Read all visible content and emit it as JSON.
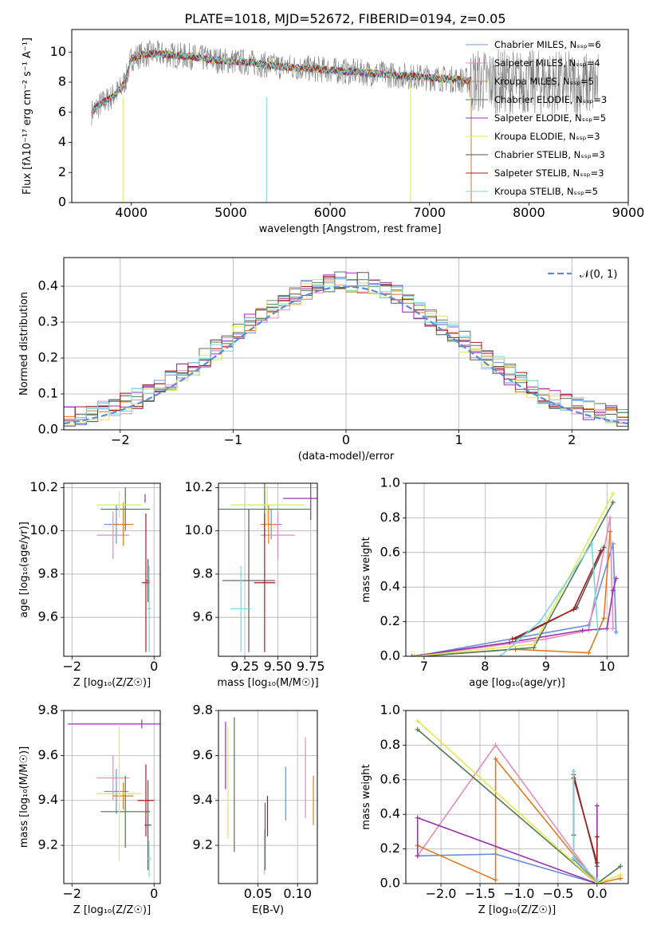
{
  "chart_data": [
    {
      "id": "spectrum",
      "type": "line",
      "title": "PLATE=1018, MJD=52672, FIBERID=0194, z=0.05",
      "xlabel": "wavelength [Angstrom, rest frame]",
      "ylabel": "Flux [fλ10⁻¹⁷ erg cm⁻² s⁻¹ A⁻¹]",
      "xlim": [
        3400,
        9000
      ],
      "ylim": [
        0,
        11.5
      ],
      "xticks": [
        "4000",
        "5000",
        "6000",
        "7000",
        "8000",
        "9000"
      ],
      "yticks": [
        "0",
        "2",
        "4",
        "6",
        "8",
        "10"
      ],
      "legend_position": "top-right",
      "legend": [
        {
          "name": "Chabrier MILES, Nₛₛₚ=6",
          "color": "#6b8fdf"
        },
        {
          "name": "Salpeter MILES, Nₛₛₚ=4",
          "color": "#e38bbf"
        },
        {
          "name": "Kroupa MILES, Nₛₛₚ=5",
          "color": "#e07a1f"
        },
        {
          "name": "Chabrier ELODIE, Nₛₛₚ=3",
          "color": "#4f7a56"
        },
        {
          "name": "Salpeter ELODIE, Nₛₛₚ=5",
          "color": "#9b30b0"
        },
        {
          "name": "Kroupa ELODIE, Nₛₛₚ=3",
          "color": "#e2ea4f"
        },
        {
          "name": "Chabrier STELIB, Nₛₛₚ=3",
          "color": "#555555"
        },
        {
          "name": "Salpeter STELIB, Nₛₛₚ=3",
          "color": "#a31c1c"
        },
        {
          "name": "Kroupa STELIB, Nₛₛₚ=5",
          "color": "#7ad7d9"
        }
      ],
      "observed_color": "#808080",
      "continuum": {
        "x": [
          3600,
          3700,
          3800,
          3900,
          3950,
          4000,
          4100,
          4200,
          4400,
          4600,
          4800,
          5000,
          5200,
          5400,
          5600,
          5800,
          6000,
          6200,
          6400,
          6600,
          6800,
          7000,
          7200,
          7400
        ],
        "y": [
          6.0,
          6.6,
          7.0,
          7.6,
          8.3,
          9.6,
          9.8,
          9.9,
          9.8,
          9.7,
          9.5,
          9.4,
          9.3,
          9.1,
          9.0,
          8.9,
          8.8,
          8.7,
          8.6,
          8.5,
          8.4,
          8.3,
          8.2,
          8.1
        ]
      },
      "observed_extent": [
        3600,
        8700
      ]
    },
    {
      "id": "residuals",
      "type": "step",
      "xlabel": "(data-model)/error",
      "ylabel": "Normed distribution",
      "xlim": [
        -2.5,
        2.5
      ],
      "ylim": [
        0,
        0.48
      ],
      "xticks": [
        "−2",
        "−1",
        "0",
        "1",
        "2"
      ],
      "yticks": [
        "0.0",
        "0.1",
        "0.2",
        "0.3",
        "0.4"
      ],
      "reference_curve": {
        "name": "𝒩(0, 1)",
        "color": "#5b8bd6",
        "style": "dashed"
      },
      "legend_position": "top-right",
      "bin_width": 0.1
    },
    {
      "id": "age-vs-Z",
      "type": "errorbar",
      "xlabel": "Z [log₁₀(Z/Z☉)]",
      "ylabel": "age  [log₁₀(age/yr)]",
      "xlim": [
        -2.2,
        0.15
      ],
      "ylim": [
        9.42,
        10.22
      ],
      "xticks": [
        "−2",
        "0"
      ],
      "yticks": [
        "9.6",
        "9.8",
        "10.0",
        "10.2"
      ],
      "points": [
        {
          "x": -0.92,
          "xerr": 0.3,
          "y": 10.03,
          "yerr": 0.09
        },
        {
          "x": -1.0,
          "xerr": 0.4,
          "y": 9.98,
          "yerr": 0.11
        },
        {
          "x": -0.75,
          "xerr": 0.25,
          "y": 10.03,
          "yerr": 0.1
        },
        {
          "x": -0.7,
          "xerr": 0.6,
          "y": 10.1,
          "yerr": 0.1
        },
        {
          "x": -0.22,
          "xerr": 0.0,
          "y": 10.15,
          "yerr": 0.02
        },
        {
          "x": -0.85,
          "xerr": 0.55,
          "y": 10.12,
          "yerr": 0.06
        },
        {
          "x": -0.15,
          "xerr": 0.05,
          "y": 9.77,
          "yerr": 0.1
        },
        {
          "x": -0.2,
          "xerr": 0.1,
          "y": 9.76,
          "yerr": 0.32
        },
        {
          "x": -0.12,
          "xerr": 0.05,
          "y": 9.64,
          "yerr": 0.2
        }
      ]
    },
    {
      "id": "age-vs-mass",
      "type": "errorbar",
      "xlabel": "mass [log₁₀(M/M☉)]",
      "xlim": [
        9.05,
        9.8
      ],
      "ylim": [
        9.42,
        10.22
      ],
      "xticks": [
        "9.25",
        "9.50",
        "9.75"
      ],
      "yticks": [
        "9.6",
        "9.8",
        "10.0",
        "10.2"
      ],
      "points": [
        {
          "x": 9.45,
          "xerr": 0.08,
          "y": 10.03,
          "yerr": 0.07
        },
        {
          "x": 9.5,
          "xerr": 0.13,
          "y": 9.98,
          "yerr": 0.11
        },
        {
          "x": 9.43,
          "xerr": 0.06,
          "y": 10.03,
          "yerr": 0.09
        },
        {
          "x": 9.4,
          "xerr": 0.35,
          "y": 10.1,
          "yerr": 0.13
        },
        {
          "x": 9.75,
          "xerr": 0.21,
          "y": 10.15,
          "yerr": 0.1
        },
        {
          "x": 9.42,
          "xerr": 0.28,
          "y": 10.12,
          "yerr": 0.09
        },
        {
          "x": 9.28,
          "xerr": 0.2,
          "y": 9.77,
          "yerr": 0.33
        },
        {
          "x": 9.4,
          "xerr": 0.08,
          "y": 9.76,
          "yerr": 0.32
        },
        {
          "x": 9.22,
          "xerr": 0.08,
          "y": 9.64,
          "yerr": 0.2
        }
      ]
    },
    {
      "id": "weight-vs-age",
      "type": "line",
      "xlabel": "age  [log₁₀(age/yr)]",
      "ylabel": "mass weight",
      "xlim": [
        6.7,
        10.35
      ],
      "ylim": [
        0,
        1.0
      ],
      "xticks": [
        "7",
        "8",
        "9",
        "10"
      ],
      "yticks": [
        "0.0",
        "0.2",
        "0.4",
        "0.6",
        "0.8",
        "1.0"
      ],
      "series": [
        {
          "x": [
            6.85,
            8.9,
            9.7,
            10.1,
            10.15
          ],
          "y": [
            0.0,
            0.13,
            0.18,
            0.65,
            0.14
          ],
          "color": "#6b8fdf"
        },
        {
          "x": [
            6.85,
            9.0,
            9.7,
            10.05,
            10.1
          ],
          "y": [
            0.0,
            0.1,
            0.15,
            0.8,
            0.16
          ],
          "color": "#e38bbf"
        },
        {
          "x": [
            6.85,
            8.5,
            9.7,
            9.95,
            10.05
          ],
          "y": [
            0.0,
            0.04,
            0.02,
            0.22,
            0.72
          ],
          "color": "#e07a1f"
        },
        {
          "x": [
            6.95,
            8.8,
            10.1
          ],
          "y": [
            0.0,
            0.05,
            0.89
          ],
          "color": "#4f7a56"
        },
        {
          "x": [
            6.8,
            8.4,
            9.6,
            10.0,
            10.1,
            10.15
          ],
          "y": [
            0.0,
            0.08,
            0.15,
            0.16,
            0.38,
            0.45
          ],
          "color": "#9b30b0"
        },
        {
          "x": [
            6.85,
            8.8,
            10.1
          ],
          "y": [
            0.0,
            0.07,
            0.94
          ],
          "color": "#e2ea4f"
        },
        {
          "x": [
            8.5,
            9.5,
            9.95
          ],
          "y": [
            0.1,
            0.28,
            0.63
          ],
          "color": "#555555"
        },
        {
          "x": [
            8.45,
            9.45,
            9.9
          ],
          "y": [
            0.1,
            0.27,
            0.61
          ],
          "color": "#a31c1c"
        },
        {
          "x": [
            8.25,
            8.9,
            9.75,
            9.85
          ],
          "y": [
            0.0,
            0.2,
            0.65,
            0.15
          ],
          "color": "#7ad7d9"
        }
      ]
    },
    {
      "id": "mass-vs-Z",
      "type": "errorbar",
      "xlabel": "Z [log₁₀(Z/Z☉)]",
      "ylabel": "mass [log₁₀(M/M☉)]",
      "xlim": [
        -2.2,
        0.15
      ],
      "ylim": [
        9.03,
        9.8
      ],
      "xticks": [
        "−2",
        "0"
      ],
      "yticks": [
        "9.2",
        "9.4",
        "9.6",
        "9.8"
      ],
      "points": [
        {
          "x": -0.92,
          "xerr": 0.3,
          "y": 9.44,
          "yerr": 0.1
        },
        {
          "x": -1.0,
          "xerr": 0.4,
          "y": 9.5,
          "yerr": 0.1
        },
        {
          "x": -0.75,
          "xerr": 0.25,
          "y": 9.42,
          "yerr": 0.06
        },
        {
          "x": -0.7,
          "xerr": 0.6,
          "y": 9.35,
          "yerr": 0.16
        },
        {
          "x": -0.3,
          "xerr": 1.8,
          "y": 9.74,
          "yerr": 0.02
        },
        {
          "x": -0.85,
          "xerr": 0.55,
          "y": 9.43,
          "yerr": 0.3
        },
        {
          "x": -0.15,
          "xerr": 0.08,
          "y": 9.29,
          "yerr": 0.2
        },
        {
          "x": -0.2,
          "xerr": 0.2,
          "y": 9.4,
          "yerr": 0.16
        },
        {
          "x": -0.12,
          "xerr": 0.05,
          "y": 9.14,
          "yerr": 0.08
        }
      ]
    },
    {
      "id": "mass-vs-ebv",
      "type": "errorbar",
      "xlabel": "E(B-V)",
      "xlim": [
        0.0,
        0.125
      ],
      "ylim": [
        9.03,
        9.8
      ],
      "xticks": [
        "0.05",
        "0.10"
      ],
      "yticks": [
        "9.2",
        "9.4",
        "9.6",
        "9.8"
      ],
      "points": [
        {
          "x": 0.085,
          "y": 9.43,
          "yerr": 0.12
        },
        {
          "x": 0.11,
          "y": 9.5,
          "yerr": 0.18
        },
        {
          "x": 0.12,
          "y": 9.4,
          "yerr": 0.11
        },
        {
          "x": 0.02,
          "y": 9.47,
          "yerr": 0.3
        },
        {
          "x": 0.009,
          "y": 9.6,
          "yerr": 0.15
        },
        {
          "x": 0.012,
          "y": 9.48,
          "yerr": 0.25
        },
        {
          "x": 0.059,
          "y": 9.24,
          "yerr": 0.15
        },
        {
          "x": 0.062,
          "y": 9.33,
          "yerr": 0.09
        },
        {
          "x": 0.058,
          "y": 9.17,
          "yerr": 0.1
        }
      ]
    },
    {
      "id": "weight-vs-Z",
      "type": "line",
      "xlabel": "Z [log₁₀(Z/Z☉)]",
      "ylabel": "mass weight",
      "xlim": [
        -2.45,
        0.4
      ],
      "ylim": [
        0,
        1.0
      ],
      "xticks": [
        "−2.0",
        "−1.5",
        "−1.0",
        "−0.5",
        "0.0"
      ],
      "yticks": [
        "0.0",
        "0.2",
        "0.4",
        "0.6",
        "0.8",
        "1.0"
      ],
      "series": [
        {
          "x": [
            -0.3,
            -0.3,
            0.0,
            -1.3,
            -2.3
          ],
          "y": [
            0.65,
            0.14,
            0.0,
            0.17,
            0.16
          ],
          "color": "#6b8fdf"
        },
        {
          "x": [
            -2.3,
            -1.3,
            0.0
          ],
          "y": [
            0.16,
            0.8,
            0.0
          ],
          "color": "#e38bbf"
        },
        {
          "x": [
            -2.3,
            -1.3,
            -1.3,
            0.0,
            0.3
          ],
          "y": [
            0.22,
            0.02,
            0.72,
            0.0,
            0.03
          ],
          "color": "#e07a1f"
        },
        {
          "x": [
            -2.3,
            0.0,
            0.3
          ],
          "y": [
            0.89,
            0.0,
            0.1
          ],
          "color": "#4f7a56"
        },
        {
          "x": [
            -2.3,
            -2.3,
            0.0,
            0.0
          ],
          "y": [
            0.16,
            0.38,
            0.0,
            0.45
          ],
          "color": "#9b30b0"
        },
        {
          "x": [
            -2.3,
            0.0,
            0.3
          ],
          "y": [
            0.94,
            0.0,
            0.05
          ],
          "color": "#e2ea4f"
        },
        {
          "x": [
            -0.3,
            -0.3,
            0.0,
            0.0
          ],
          "y": [
            0.28,
            0.63,
            0.1,
            0.12
          ],
          "color": "#555555"
        },
        {
          "x": [
            -0.3,
            0.0,
            0.0
          ],
          "y": [
            0.61,
            0.12,
            0.27
          ],
          "color": "#a31c1c"
        },
        {
          "x": [
            -0.3,
            -0.3,
            0.0
          ],
          "y": [
            0.65,
            0.15,
            0.02
          ],
          "color": "#7ad7d9"
        }
      ]
    }
  ]
}
